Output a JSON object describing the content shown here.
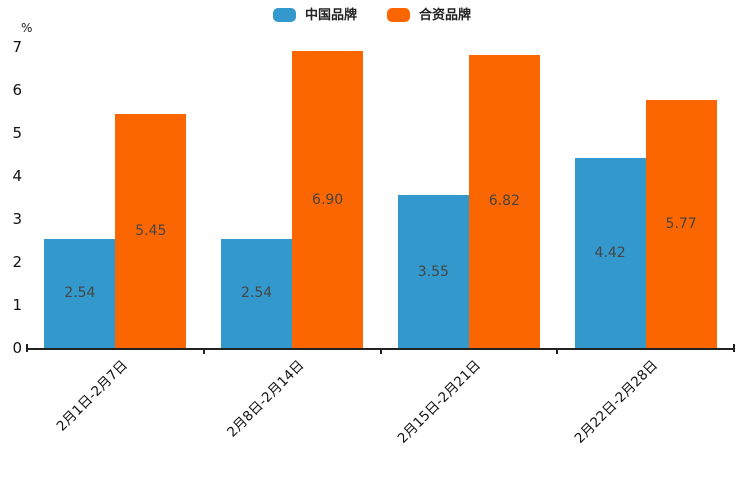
{
  "chart_data": {
    "type": "bar",
    "title": "",
    "xlabel": "",
    "ylabel": "%",
    "ylim": [
      0,
      7
    ],
    "yticks": [
      0,
      1,
      2,
      3,
      4,
      5,
      6,
      7
    ],
    "grid": false,
    "legend_position": "top-center",
    "value_label_decimals": 2,
    "categories": [
      "2月1日-2月7日",
      "2月8日-2月14日",
      "2月15日-2月21日",
      "2月22日-2月28日"
    ],
    "series": [
      {
        "name": "中国品牌",
        "color": "#3398CC",
        "values": [
          2.54,
          2.54,
          3.55,
          4.42
        ]
      },
      {
        "name": "合资品牌",
        "color": "#FC6600",
        "values": [
          5.45,
          6.9,
          6.82,
          5.77
        ]
      }
    ]
  },
  "axis": {
    "unit_label": "%"
  }
}
